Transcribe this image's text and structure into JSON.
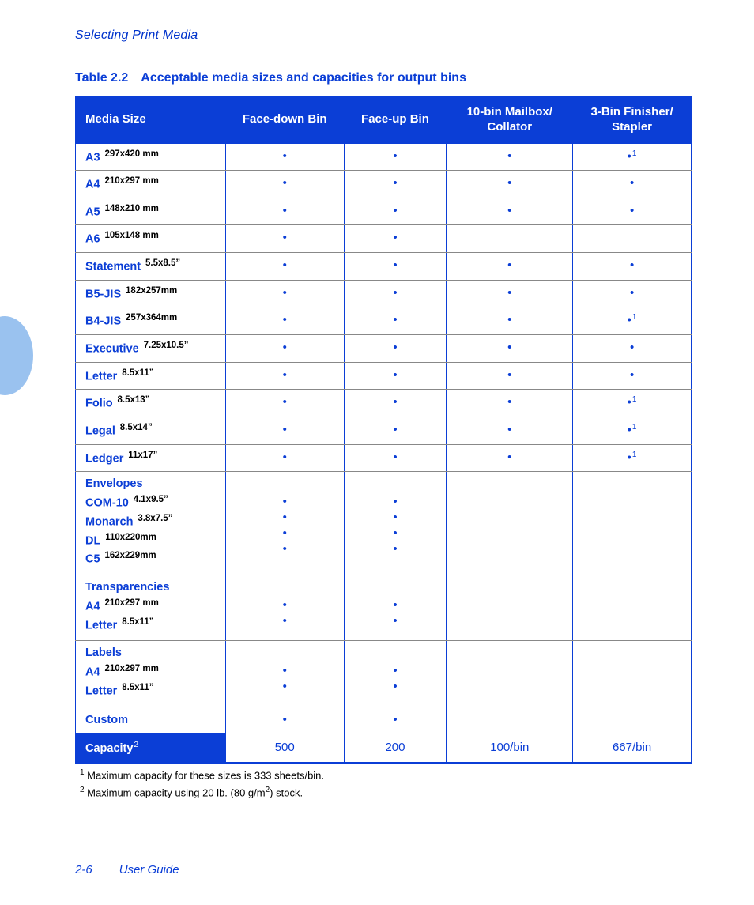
{
  "colors": {
    "brand_blue": "#0b3ed6",
    "side_tab": "#6fa8e8",
    "row_divider": "#888888",
    "text_black": "#000000",
    "header_bg": "#0b3ed6",
    "header_fg": "#ffffff"
  },
  "section_heading": "Selecting Print Media",
  "table": {
    "caption_number": "Table 2.2",
    "caption_title": "Acceptable media sizes and capacities for output bins",
    "headers": {
      "media_size": "Media Size",
      "face_down": "Face-down Bin",
      "face_up": "Face-up Bin",
      "mailbox": "10-bin Mailbox/ Collator",
      "finisher": "3-Bin Finisher/ Stapler"
    },
    "rows": [
      {
        "name": "A3",
        "dim": "297x420 mm",
        "fd": "•",
        "fu": "•",
        "mb": "•",
        "fin": "•",
        "fin_note": "1"
      },
      {
        "name": "A4",
        "dim": "210x297 mm",
        "fd": "•",
        "fu": "•",
        "mb": "•",
        "fin": "•"
      },
      {
        "name": "A5",
        "dim": "148x210 mm",
        "fd": "•",
        "fu": "•",
        "mb": "•",
        "fin": "•"
      },
      {
        "name": "A6",
        "dim": "105x148 mm",
        "fd": "•",
        "fu": "•",
        "mb": "",
        "fin": ""
      },
      {
        "name": "Statement",
        "dim": "5.5x8.5”",
        "fd": "•",
        "fu": "•",
        "mb": "•",
        "fin": "•"
      },
      {
        "name": "B5-JIS",
        "dim": "182x257mm",
        "fd": "•",
        "fu": "•",
        "mb": "•",
        "fin": "•"
      },
      {
        "name": "B4-JIS",
        "dim": "257x364mm",
        "fd": "•",
        "fu": "•",
        "mb": "•",
        "fin": "•",
        "fin_note": "1"
      },
      {
        "name": "Executive",
        "dim": "7.25x10.5”",
        "fd": "•",
        "fu": "•",
        "mb": "•",
        "fin": "•"
      },
      {
        "name": "Letter",
        "dim": "8.5x11”",
        "fd": "•",
        "fu": "•",
        "mb": "•",
        "fin": "•"
      },
      {
        "name": "Folio",
        "dim": "8.5x13”",
        "fd": "•",
        "fu": "•",
        "mb": "•",
        "fin": "•",
        "fin_note": "1"
      },
      {
        "name": "Legal",
        "dim": "8.5x14”",
        "fd": "•",
        "fu": "•",
        "mb": "•",
        "fin": "•",
        "fin_note": "1"
      },
      {
        "name": "Ledger",
        "dim": "11x17”",
        "fd": "•",
        "fu": "•",
        "mb": "•",
        "fin": "•",
        "fin_note": "1"
      }
    ],
    "group_rows": [
      {
        "title": "Envelopes",
        "items": [
          {
            "name": "COM-10",
            "dim": "4.1x9.5”"
          },
          {
            "name": "Monarch",
            "dim": "3.8x7.5”"
          },
          {
            "name": "DL",
            "dim": "110x220mm"
          },
          {
            "name": "C5",
            "dim": "162x229mm"
          }
        ],
        "fd": 4,
        "fu": 4,
        "mb": 0,
        "fin": 0
      },
      {
        "title": "Transparencies",
        "items": [
          {
            "name": "A4",
            "dim": "210x297 mm"
          },
          {
            "name": "Letter",
            "dim": "8.5x11”"
          }
        ],
        "fd": 2,
        "fu": 2,
        "mb": 0,
        "fin": 0
      },
      {
        "title": "Labels",
        "items": [
          {
            "name": "A4",
            "dim": "210x297 mm"
          },
          {
            "name": "Letter",
            "dim": "8.5x11”"
          }
        ],
        "fd": 2,
        "fu": 2,
        "mb": 0,
        "fin": 0
      }
    ],
    "custom_row": {
      "name": "Custom",
      "fd": "•",
      "fu": "•",
      "mb": "",
      "fin": ""
    },
    "capacity_row": {
      "label": "Capacity",
      "label_note": "2",
      "fd": "500",
      "fu": "200",
      "mb": "100/bin",
      "fin": "667/bin"
    }
  },
  "footnotes": {
    "fn1_marker": "1",
    "fn1_text": " Maximum capacity for these sizes is 333 sheets/bin.",
    "fn2_marker": "2",
    "fn2_text_a": " Maximum capacity using 20 lb. (80 g/m",
    "fn2_sup": "2",
    "fn2_text_b": ") stock."
  },
  "footer": {
    "page_number": "2-6",
    "doc_title": "User Guide"
  }
}
